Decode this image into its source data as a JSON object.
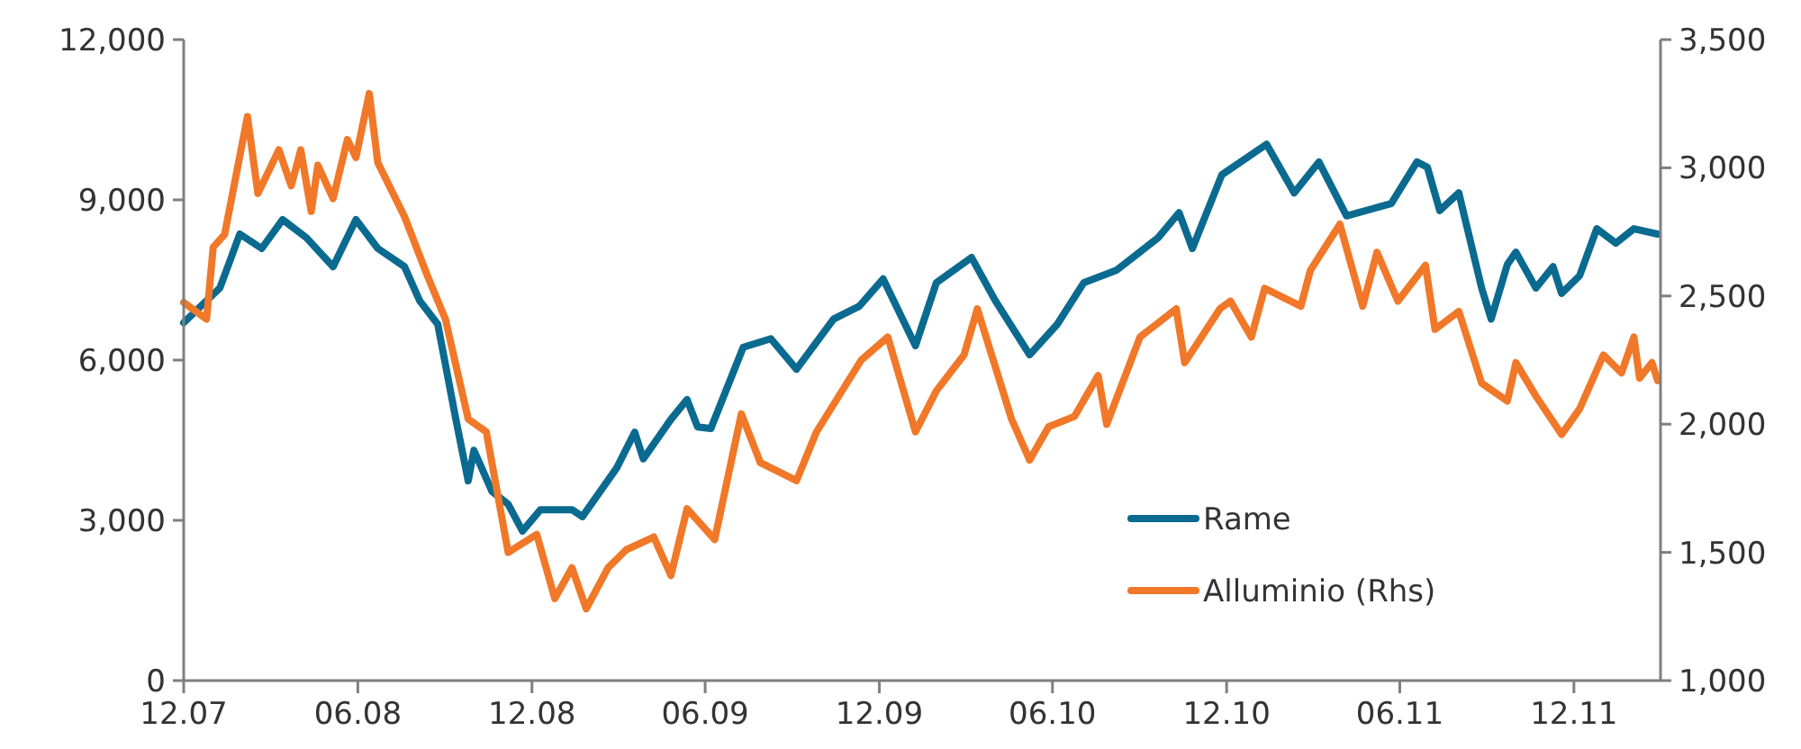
{
  "chart_data": {
    "type": "line",
    "xlim": [
      "2007-12-01",
      "2012-03-01"
    ],
    "xticks": [
      {
        "value": "2007-12-01",
        "label": "12.07"
      },
      {
        "value": "2008-06-01",
        "label": "06.08"
      },
      {
        "value": "2008-12-01",
        "label": "12.08"
      },
      {
        "value": "2009-06-01",
        "label": "06.09"
      },
      {
        "value": "2009-12-01",
        "label": "12.09"
      },
      {
        "value": "2010-06-01",
        "label": "06.10"
      },
      {
        "value": "2010-12-01",
        "label": "12.10"
      },
      {
        "value": "2011-06-01",
        "label": "06.11"
      },
      {
        "value": "2011-12-01",
        "label": "12.11"
      }
    ],
    "ylim": [
      0,
      12000
    ],
    "yticks": [
      {
        "value": 0,
        "label": "0"
      },
      {
        "value": 3000,
        "label": "3,000"
      },
      {
        "value": 6000,
        "label": "6,000"
      },
      {
        "value": 9000,
        "label": "9,000"
      },
      {
        "value": 12000,
        "label": "12,000"
      }
    ],
    "y2lim": [
      1000,
      3500
    ],
    "y2ticks": [
      {
        "value": 1000,
        "label": "1,000"
      },
      {
        "value": 1500,
        "label": "1,500"
      },
      {
        "value": 2000,
        "label": "2,000"
      },
      {
        "value": 2500,
        "label": "2,500"
      },
      {
        "value": 3000,
        "label": "3,000"
      },
      {
        "value": 3500,
        "label": "3,500"
      }
    ],
    "legend": "bottom right",
    "line_style": "solid",
    "series": [
      {
        "name": "Rame",
        "color": "#0b6a8f",
        "x": [
          "2007-12-01",
          "2008-01-08",
          "2008-01-29",
          "2008-02-21",
          "2008-03-14",
          "2008-04-08",
          "2008-05-06",
          "2008-05-30",
          "2008-06-22",
          "2008-07-20",
          "2008-08-05",
          "2008-08-24",
          "2008-09-12",
          "2008-09-25",
          "2008-10-01",
          "2008-10-20",
          "2008-11-06",
          "2008-11-21",
          "2008-12-10",
          "2009-01-12",
          "2009-01-23",
          "2009-02-28",
          "2009-03-19",
          "2009-03-28",
          "2009-04-26",
          "2009-05-13",
          "2009-05-24",
          "2009-06-07",
          "2009-07-11",
          "2009-08-09",
          "2009-09-05",
          "2009-10-14",
          "2009-11-10",
          "2009-12-05",
          "2010-01-08",
          "2010-01-30",
          "2010-03-08",
          "2010-04-02",
          "2010-05-08",
          "2010-06-06",
          "2010-07-04",
          "2010-08-07",
          "2010-09-20",
          "2010-10-12",
          "2010-10-26",
          "2010-11-26",
          "2011-01-12",
          "2011-02-10",
          "2011-03-08",
          "2011-04-06",
          "2011-05-23",
          "2011-06-19",
          "2011-06-30",
          "2011-07-13",
          "2011-08-02",
          "2011-08-26",
          "2011-09-05",
          "2011-09-22",
          "2011-10-01",
          "2011-10-22",
          "2011-11-09",
          "2011-11-18",
          "2011-12-07",
          "2011-12-25",
          "2012-01-14",
          "2012-02-02",
          "2012-02-27"
        ],
        "values": [
          6700,
          7350,
          8360,
          8090,
          8630,
          8290,
          7750,
          8630,
          8090,
          7750,
          7110,
          6670,
          4890,
          3740,
          4310,
          3540,
          3300,
          2800,
          3200,
          3200,
          3070,
          3980,
          4650,
          4150,
          4890,
          5260,
          4750,
          4720,
          6240,
          6400,
          5830,
          6770,
          7010,
          7520,
          6270,
          7450,
          7920,
          7110,
          6100,
          6670,
          7450,
          7680,
          8290,
          8760,
          8090,
          9470,
          10040,
          9130,
          9710,
          8700,
          8930,
          9710,
          9610,
          8800,
          9130,
          7350,
          6770,
          7790,
          8020,
          7350,
          7750,
          7250,
          7580,
          8460,
          8190,
          8460,
          8360
        ]
      },
      {
        "name": "Alluminio (Rhs)",
        "color": "#f07828",
        "axis": "y2",
        "x": [
          "2007-12-01",
          "2007-12-25",
          "2008-01-01",
          "2008-01-13",
          "2008-02-06",
          "2008-02-17",
          "2008-03-10",
          "2008-03-23",
          "2008-04-02",
          "2008-04-13",
          "2008-04-20",
          "2008-05-06",
          "2008-05-21",
          "2008-05-30",
          "2008-06-13",
          "2008-06-22",
          "2008-07-20",
          "2008-08-13",
          "2008-09-01",
          "2008-09-25",
          "2008-10-14",
          "2008-11-06",
          "2008-12-06",
          "2008-12-25",
          "2009-01-12",
          "2009-01-27",
          "2009-02-19",
          "2009-03-10",
          "2009-04-08",
          "2009-04-26",
          "2009-05-13",
          "2009-06-11",
          "2009-07-09",
          "2009-07-29",
          "2009-09-05",
          "2009-09-26",
          "2009-11-12",
          "2009-12-10",
          "2010-01-08",
          "2010-01-30",
          "2010-02-28",
          "2010-03-14",
          "2010-04-19",
          "2010-05-08",
          "2010-05-28",
          "2010-06-24",
          "2010-07-19",
          "2010-07-28",
          "2010-09-01",
          "2010-10-09",
          "2010-10-18",
          "2010-11-24",
          "2010-12-05",
          "2010-12-27",
          "2011-01-10",
          "2011-02-17",
          "2011-02-27",
          "2011-03-30",
          "2011-04-23",
          "2011-05-08",
          "2011-05-30",
          "2011-06-28",
          "2011-07-08",
          "2011-08-02",
          "2011-08-26",
          "2011-09-22",
          "2011-10-01",
          "2011-10-22",
          "2011-11-18",
          "2011-12-07",
          "2012-01-01",
          "2012-01-20",
          "2012-02-02",
          "2012-02-08",
          "2012-02-21",
          "2012-02-27"
        ],
        "values": [
          2475,
          2410,
          2690,
          2740,
          3200,
          2900,
          3070,
          2930,
          3070,
          2830,
          3010,
          2880,
          3110,
          3040,
          3290,
          3020,
          2810,
          2580,
          2410,
          2020,
          1970,
          1500,
          1570,
          1320,
          1440,
          1280,
          1440,
          1510,
          1560,
          1410,
          1670,
          1550,
          2040,
          1850,
          1780,
          1970,
          2250,
          2340,
          1970,
          2130,
          2270,
          2450,
          2020,
          1860,
          1990,
          2030,
          2190,
          2000,
          2340,
          2450,
          2240,
          2450,
          2480,
          2340,
          2530,
          2460,
          2600,
          2780,
          2460,
          2670,
          2480,
          2620,
          2370,
          2440,
          2160,
          2090,
          2240,
          2110,
          1960,
          2060,
          2270,
          2200,
          2340,
          2180,
          2240,
          2170
        ]
      }
    ]
  }
}
